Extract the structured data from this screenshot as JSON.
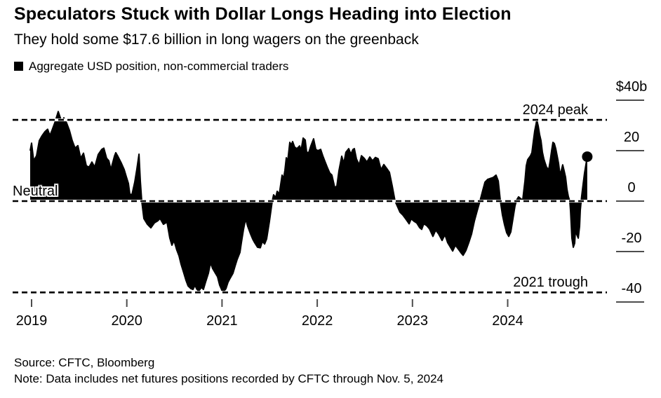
{
  "page": {
    "background": "#ffffff",
    "foreground": "#000000"
  },
  "header": {
    "title": "Speculators Stuck with Dollar Longs Heading into Election",
    "subtitle": "They hold some $17.6 billion in long wagers on the greenback"
  },
  "legend": {
    "marker_color": "#000000",
    "label": "Aggregate USD position, non-commercial traders"
  },
  "annotations": {
    "peak_label": "2024 peak",
    "neutral_label": "Neutral",
    "trough_label": "2021 trough"
  },
  "footer": {
    "source": "Source: CFTC, Bloomberg",
    "note": "Note: Data includes net futures positions recorded by CFTC through Nov. 5, 2024"
  },
  "chart_data": {
    "type": "area",
    "title": "Aggregate USD position, non-commercial traders",
    "unit": "USD billions",
    "series_color": "#000000",
    "grid": false,
    "legend_position": "top-left",
    "x_axis": {
      "tick_labels": [
        "2019",
        "2020",
        "2021",
        "2022",
        "2023",
        "2024"
      ],
      "tick_values": [
        2019,
        2020,
        2021,
        2022,
        2023,
        2024
      ],
      "range": [
        2018.98,
        2024.95
      ]
    },
    "y_axis": {
      "tick_labels": [
        "$40b",
        "20",
        "0",
        "-20",
        "-40"
      ],
      "tick_values": [
        40,
        20,
        0,
        -20,
        -40
      ],
      "range": [
        -40,
        40
      ]
    },
    "reference_lines": [
      {
        "label": "2024 peak",
        "value": 32.2
      },
      {
        "label": "Neutral",
        "value": 0
      },
      {
        "label": "2021 trough",
        "value": -36.2
      }
    ],
    "latest": {
      "date_label": "Nov. 5, 2024",
      "value": 17.6,
      "marker": "circle"
    },
    "series": [
      {
        "name": "Aggregate USD position, non-commercial traders",
        "points": [
          [
            2018.985,
            20
          ],
          [
            2019.0,
            23
          ],
          [
            2019.022,
            16
          ],
          [
            2019.052,
            18
          ],
          [
            2019.081,
            24
          ],
          [
            2019.111,
            26
          ],
          [
            2019.14,
            27.5
          ],
          [
            2019.169,
            28.5
          ],
          [
            2019.192,
            26
          ],
          [
            2019.214,
            28
          ],
          [
            2019.243,
            31
          ],
          [
            2019.28,
            35.5
          ],
          [
            2019.302,
            33
          ],
          [
            2019.317,
            31
          ],
          [
            2019.339,
            33
          ],
          [
            2019.368,
            31
          ],
          [
            2019.398,
            28
          ],
          [
            2019.427,
            24
          ],
          [
            2019.457,
            21
          ],
          [
            2019.486,
            22
          ],
          [
            2019.516,
            17
          ],
          [
            2019.545,
            19
          ],
          [
            2019.575,
            14
          ],
          [
            2019.604,
            13.5
          ],
          [
            2019.634,
            15.5
          ],
          [
            2019.663,
            13.5
          ],
          [
            2019.7,
            18.5
          ],
          [
            2019.737,
            20.5
          ],
          [
            2019.759,
            21
          ],
          [
            2019.788,
            17
          ],
          [
            2019.811,
            16
          ],
          [
            2019.833,
            12.5
          ],
          [
            2019.87,
            17.8
          ],
          [
            2019.884,
            19.2
          ],
          [
            2019.906,
            17.8
          ],
          [
            2019.943,
            15
          ],
          [
            2019.973,
            12.5
          ],
          [
            2019.995,
            9.7
          ],
          [
            2020.017,
            7
          ],
          [
            2020.032,
            2.8
          ],
          [
            2020.054,
            2.5
          ],
          [
            2020.083,
            7.5
          ],
          [
            2020.105,
            12.5
          ],
          [
            2020.128,
            18.6
          ],
          [
            2020.142,
            8
          ],
          [
            2020.157,
            0
          ],
          [
            2020.179,
            -6.9
          ],
          [
            2020.216,
            -9.2
          ],
          [
            2020.253,
            -10.6
          ],
          [
            2020.29,
            -8.6
          ],
          [
            2020.326,
            -7.8
          ],
          [
            2020.349,
            -6.9
          ],
          [
            2020.385,
            -9.2
          ],
          [
            2020.422,
            -8.3
          ],
          [
            2020.452,
            -14.7
          ],
          [
            2020.474,
            -17.5
          ],
          [
            2020.496,
            -15.6
          ],
          [
            2020.525,
            -19.4
          ],
          [
            2020.548,
            -21.7
          ],
          [
            2020.57,
            -25
          ],
          [
            2020.599,
            -28.6
          ],
          [
            2020.621,
            -31.4
          ],
          [
            2020.643,
            -33.6
          ],
          [
            2020.673,
            -34.7
          ],
          [
            2020.695,
            -35
          ],
          [
            2020.717,
            -33.3
          ],
          [
            2020.732,
            -34.7
          ],
          [
            2020.754,
            -35.8
          ],
          [
            2020.783,
            -34.2
          ],
          [
            2020.805,
            -35
          ],
          [
            2020.827,
            -32.2
          ],
          [
            2020.857,
            -28.6
          ],
          [
            2020.879,
            -24.4
          ],
          [
            2020.901,
            -26.7
          ],
          [
            2020.931,
            -28.6
          ],
          [
            2020.953,
            -30
          ],
          [
            2020.975,
            -33.3
          ],
          [
            2021.004,
            -35.8
          ],
          [
            2021.012,
            -36.2
          ],
          [
            2021.041,
            -34.7
          ],
          [
            2021.063,
            -32.2
          ],
          [
            2021.085,
            -30.6
          ],
          [
            2021.115,
            -28.6
          ],
          [
            2021.137,
            -25.8
          ],
          [
            2021.159,
            -23.1
          ],
          [
            2021.189,
            -20.3
          ],
          [
            2021.203,
            -16.7
          ],
          [
            2021.226,
            -11.1
          ],
          [
            2021.248,
            -7
          ],
          [
            2021.27,
            -10
          ],
          [
            2021.299,
            -13
          ],
          [
            2021.321,
            -15
          ],
          [
            2021.343,
            -16.5
          ],
          [
            2021.373,
            -18.3
          ],
          [
            2021.402,
            -18.5
          ],
          [
            2021.424,
            -16
          ],
          [
            2021.447,
            -17
          ],
          [
            2021.469,
            -15
          ],
          [
            2021.498,
            -8
          ],
          [
            2021.528,
            0
          ],
          [
            2021.542,
            2.5
          ],
          [
            2021.564,
            1.4
          ],
          [
            2021.579,
            3.9
          ],
          [
            2021.601,
            2.8
          ],
          [
            2021.631,
            10.3
          ],
          [
            2021.646,
            8.9
          ],
          [
            2021.66,
            12.2
          ],
          [
            2021.675,
            17.2
          ],
          [
            2021.69,
            15.8
          ],
          [
            2021.712,
            23.3
          ],
          [
            2021.727,
            22.2
          ],
          [
            2021.741,
            23.6
          ],
          [
            2021.763,
            21.4
          ],
          [
            2021.786,
            20.8
          ],
          [
            2021.815,
            21.9
          ],
          [
            2021.83,
            20
          ],
          [
            2021.852,
            25
          ],
          [
            2021.874,
            24.2
          ],
          [
            2021.889,
            19.4
          ],
          [
            2021.911,
            19.2
          ],
          [
            2021.933,
            21.9
          ],
          [
            2021.962,
            24.7
          ],
          [
            2021.985,
            20.5
          ],
          [
            2022.007,
            20
          ],
          [
            2022.036,
            20.5
          ],
          [
            2022.058,
            18
          ],
          [
            2022.08,
            15.8
          ],
          [
            2022.11,
            13
          ],
          [
            2022.132,
            11.1
          ],
          [
            2022.154,
            10.3
          ],
          [
            2022.184,
            5.3
          ],
          [
            2022.206,
            6
          ],
          [
            2022.228,
            12
          ],
          [
            2022.257,
            17.8
          ],
          [
            2022.279,
            15
          ],
          [
            2022.301,
            19.4
          ],
          [
            2022.331,
            20.8
          ],
          [
            2022.353,
            18.6
          ],
          [
            2022.375,
            20.5
          ],
          [
            2022.39,
            20.8
          ],
          [
            2022.412,
            16.7
          ],
          [
            2022.441,
            14.4
          ],
          [
            2022.464,
            18
          ],
          [
            2022.493,
            17
          ],
          [
            2022.522,
            15.5
          ],
          [
            2022.552,
            17.5
          ],
          [
            2022.581,
            16
          ],
          [
            2022.611,
            17.3
          ],
          [
            2022.64,
            16.8
          ],
          [
            2022.67,
            12.5
          ],
          [
            2022.699,
            14.5
          ],
          [
            2022.729,
            13
          ],
          [
            2022.758,
            11.4
          ],
          [
            2022.788,
            6
          ],
          [
            2022.817,
            0
          ],
          [
            2022.847,
            -2.5
          ],
          [
            2022.869,
            -4.4
          ],
          [
            2022.898,
            -5.5
          ],
          [
            2022.928,
            -7
          ],
          [
            2022.965,
            -9
          ],
          [
            2022.987,
            -7
          ],
          [
            2023.016,
            -8
          ],
          [
            2023.046,
            -8.7
          ],
          [
            2023.075,
            -10.5
          ],
          [
            2023.097,
            -11.2
          ],
          [
            2023.119,
            -9
          ],
          [
            2023.149,
            -9.7
          ],
          [
            2023.178,
            -11
          ],
          [
            2023.215,
            -14
          ],
          [
            2023.245,
            -11.5
          ],
          [
            2023.274,
            -13
          ],
          [
            2023.311,
            -15.6
          ],
          [
            2023.341,
            -13.3
          ],
          [
            2023.37,
            -16.5
          ],
          [
            2023.399,
            -18.3
          ],
          [
            2023.422,
            -19.8
          ],
          [
            2023.451,
            -17.5
          ],
          [
            2023.481,
            -19
          ],
          [
            2023.51,
            -20.5
          ],
          [
            2023.532,
            -21.5
          ],
          [
            2023.562,
            -19.5
          ],
          [
            2023.591,
            -16.5
          ],
          [
            2023.621,
            -13
          ],
          [
            2023.65,
            -8
          ],
          [
            2023.679,
            -4
          ],
          [
            2023.709,
            0
          ],
          [
            2023.738,
            4.2
          ],
          [
            2023.761,
            7.5
          ],
          [
            2023.79,
            8.6
          ],
          [
            2023.819,
            9
          ],
          [
            2023.849,
            9.4
          ],
          [
            2023.878,
            10.3
          ],
          [
            2023.901,
            8
          ],
          [
            2023.923,
            0
          ],
          [
            2023.945,
            -5.5
          ],
          [
            2023.967,
            -9.4
          ],
          [
            2023.989,
            -12.5
          ],
          [
            2024.011,
            -14
          ],
          [
            2024.033,
            -12.2
          ],
          [
            2024.055,
            -7
          ],
          [
            2024.077,
            -2
          ],
          [
            2024.092,
            0.3
          ],
          [
            2024.114,
            1.7
          ],
          [
            2024.136,
            1
          ],
          [
            2024.158,
            0.3
          ],
          [
            2024.166,
            3
          ],
          [
            2024.181,
            8
          ],
          [
            2024.195,
            14
          ],
          [
            2024.21,
            16.4
          ],
          [
            2024.225,
            17.2
          ],
          [
            2024.24,
            18
          ],
          [
            2024.254,
            19.2
          ],
          [
            2024.269,
            23.6
          ],
          [
            2024.284,
            27.8
          ],
          [
            2024.298,
            30.5
          ],
          [
            2024.306,
            32.2
          ],
          [
            2024.321,
            29.7
          ],
          [
            2024.335,
            26.4
          ],
          [
            2024.35,
            24
          ],
          [
            2024.365,
            19.4
          ],
          [
            2024.38,
            16.7
          ],
          [
            2024.394,
            15
          ],
          [
            2024.409,
            13.4
          ],
          [
            2024.431,
            12.5
          ],
          [
            2024.446,
            15.8
          ],
          [
            2024.461,
            20
          ],
          [
            2024.475,
            23.3
          ],
          [
            2024.49,
            22.8
          ],
          [
            2024.505,
            20.8
          ],
          [
            2024.52,
            17.8
          ],
          [
            2024.534,
            15
          ],
          [
            2024.549,
            10.5
          ],
          [
            2024.564,
            12.2
          ],
          [
            2024.578,
            14.4
          ],
          [
            2024.593,
            12
          ],
          [
            2024.608,
            9.5
          ],
          [
            2024.623,
            4.7
          ],
          [
            2024.637,
            1.9
          ],
          [
            2024.652,
            0
          ],
          [
            2024.66,
            -4
          ],
          [
            2024.674,
            -14.7
          ],
          [
            2024.689,
            -18.3
          ],
          [
            2024.704,
            -16.7
          ],
          [
            2024.711,
            -12
          ],
          [
            2024.726,
            -13.3
          ],
          [
            2024.741,
            -14.7
          ],
          [
            2024.755,
            -10
          ],
          [
            2024.763,
            -3.6
          ],
          [
            2024.777,
            1.9
          ],
          [
            2024.792,
            6.7
          ],
          [
            2024.807,
            11.1
          ],
          [
            2024.822,
            14.5
          ],
          [
            2024.836,
            17.6
          ]
        ]
      }
    ]
  }
}
